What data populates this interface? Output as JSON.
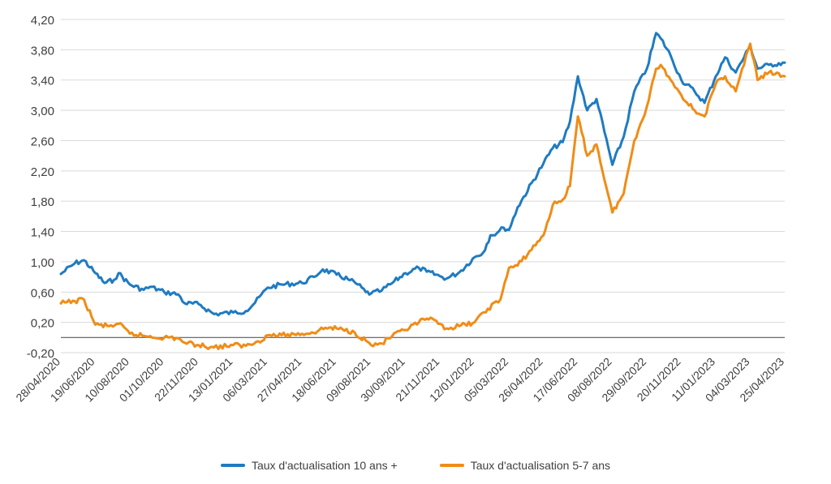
{
  "chart_data": {
    "type": "line",
    "title": "",
    "xlabel": "",
    "ylabel": "",
    "ylim": [
      -0.2,
      4.2
    ],
    "y_ticks": [
      "-0,20",
      "0,20",
      "0,60",
      "1,00",
      "1,40",
      "1,80",
      "2,20",
      "2,60",
      "3,00",
      "3,40",
      "3,80",
      "4,20"
    ],
    "x_tick_labels": [
      "28/04/2020",
      "19/06/2020",
      "10/08/2020",
      "01/10/2020",
      "22/11/2020",
      "13/01/2021",
      "06/03/2021",
      "27/04/2021",
      "18/06/2021",
      "09/08/2021",
      "30/09/2021",
      "21/11/2021",
      "12/01/2022",
      "05/03/2022",
      "26/04/2022",
      "17/06/2022",
      "08/08/2022",
      "29/09/2022",
      "20/11/2022",
      "11/01/2023",
      "04/03/2023",
      "25/04/2023"
    ],
    "grid": "horizontal",
    "legend_position": "bottom",
    "series": [
      {
        "name": "Taux d'actualisation 10 ans +",
        "color": "#1F7BC1",
        "points": [
          [
            "28/04/2020",
            0.84
          ],
          [
            "19/05/2020",
            0.98
          ],
          [
            "02/06/2020",
            1.02
          ],
          [
            "19/06/2020",
            0.85
          ],
          [
            "03/07/2020",
            0.72
          ],
          [
            "17/07/2020",
            0.76
          ],
          [
            "24/07/2020",
            0.85
          ],
          [
            "10/08/2020",
            0.7
          ],
          [
            "31/08/2020",
            0.63
          ],
          [
            "10/09/2020",
            0.67
          ],
          [
            "01/10/2020",
            0.6
          ],
          [
            "22/10/2020",
            0.57
          ],
          [
            "01/11/2020",
            0.45
          ],
          [
            "22/11/2020",
            0.44
          ],
          [
            "15/12/2020",
            0.31
          ],
          [
            "13/01/2021",
            0.33
          ],
          [
            "01/02/2021",
            0.35
          ],
          [
            "15/02/2021",
            0.46
          ],
          [
            "06/03/2021",
            0.66
          ],
          [
            "27/03/2021",
            0.7
          ],
          [
            "27/04/2021",
            0.72
          ],
          [
            "15/05/2021",
            0.8
          ],
          [
            "28/05/2021",
            0.9
          ],
          [
            "18/06/2021",
            0.83
          ],
          [
            "05/07/2021",
            0.77
          ],
          [
            "20/07/2021",
            0.7
          ],
          [
            "01/08/2021",
            0.6
          ],
          [
            "09/08/2021",
            0.58
          ],
          [
            "25/08/2021",
            0.62
          ],
          [
            "10/09/2021",
            0.72
          ],
          [
            "30/09/2021",
            0.85
          ],
          [
            "20/10/2021",
            0.92
          ],
          [
            "01/11/2021",
            0.87
          ],
          [
            "21/11/2021",
            0.81
          ],
          [
            "01/12/2021",
            0.78
          ],
          [
            "20/12/2021",
            0.86
          ],
          [
            "12/01/2022",
            1.06
          ],
          [
            "25/01/2022",
            1.12
          ],
          [
            "05/02/2022",
            1.35
          ],
          [
            "15/02/2022",
            1.38
          ],
          [
            "25/02/2022",
            1.45
          ],
          [
            "05/03/2022",
            1.42
          ],
          [
            "18/03/2022",
            1.72
          ],
          [
            "26/04/2022",
            2.3
          ],
          [
            "10/05/2022",
            2.5
          ],
          [
            "25/05/2022",
            2.58
          ],
          [
            "05/06/2022",
            2.85
          ],
          [
            "17/06/2022",
            3.45
          ],
          [
            "01/07/2022",
            3.0
          ],
          [
            "15/07/2022",
            3.15
          ],
          [
            "08/08/2022",
            2.28
          ],
          [
            "25/08/2022",
            2.65
          ],
          [
            "10/09/2022",
            3.25
          ],
          [
            "29/09/2022",
            3.55
          ],
          [
            "13/10/2022",
            4.02
          ],
          [
            "20/10/2022",
            3.95
          ],
          [
            "04/11/2022",
            3.72
          ],
          [
            "20/11/2022",
            3.4
          ],
          [
            "10/12/2022",
            3.25
          ],
          [
            "25/12/2022",
            3.1
          ],
          [
            "11/01/2023",
            3.45
          ],
          [
            "25/01/2023",
            3.7
          ],
          [
            "10/02/2023",
            3.5
          ],
          [
            "04/03/2023",
            3.85
          ],
          [
            "15/03/2023",
            3.55
          ],
          [
            "01/04/2023",
            3.6
          ],
          [
            "25/04/2023",
            3.63
          ]
        ]
      },
      {
        "name": "Taux d'actualisation 5-7 ans",
        "color": "#F08C16",
        "points": [
          [
            "28/04/2020",
            0.45
          ],
          [
            "19/05/2020",
            0.48
          ],
          [
            "02/06/2020",
            0.5
          ],
          [
            "19/06/2020",
            0.17
          ],
          [
            "10/07/2020",
            0.15
          ],
          [
            "24/07/2020",
            0.18
          ],
          [
            "10/08/2020",
            0.05
          ],
          [
            "01/09/2020",
            0.02
          ],
          [
            "01/10/2020",
            0.0
          ],
          [
            "22/10/2020",
            -0.01
          ],
          [
            "01/11/2020",
            -0.07
          ],
          [
            "22/11/2020",
            -0.1
          ],
          [
            "15/12/2020",
            -0.13
          ],
          [
            "13/01/2021",
            -0.1
          ],
          [
            "01/02/2021",
            -0.11
          ],
          [
            "20/02/2021",
            -0.05
          ],
          [
            "06/03/2021",
            0.03
          ],
          [
            "27/03/2021",
            0.03
          ],
          [
            "27/04/2021",
            0.05
          ],
          [
            "20/05/2021",
            0.08
          ],
          [
            "01/06/2021",
            0.13
          ],
          [
            "18/06/2021",
            0.12
          ],
          [
            "15/07/2021",
            0.07
          ],
          [
            "01/08/2021",
            -0.04
          ],
          [
            "09/08/2021",
            -0.1
          ],
          [
            "25/08/2021",
            -0.08
          ],
          [
            "10/09/2021",
            0.02
          ],
          [
            "30/09/2021",
            0.1
          ],
          [
            "20/10/2021",
            0.2
          ],
          [
            "01/11/2021",
            0.25
          ],
          [
            "21/11/2021",
            0.18
          ],
          [
            "01/12/2021",
            0.12
          ],
          [
            "20/12/2021",
            0.15
          ],
          [
            "12/01/2022",
            0.2
          ],
          [
            "01/02/2022",
            0.38
          ],
          [
            "20/02/2022",
            0.5
          ],
          [
            "05/03/2022",
            0.92
          ],
          [
            "18/03/2022",
            0.95
          ],
          [
            "26/04/2022",
            1.35
          ],
          [
            "10/05/2022",
            1.75
          ],
          [
            "25/05/2022",
            1.82
          ],
          [
            "05/06/2022",
            2.0
          ],
          [
            "17/06/2022",
            2.92
          ],
          [
            "01/07/2022",
            2.4
          ],
          [
            "15/07/2022",
            2.55
          ],
          [
            "08/08/2022",
            1.65
          ],
          [
            "25/08/2022",
            1.9
          ],
          [
            "10/09/2022",
            2.6
          ],
          [
            "29/09/2022",
            3.05
          ],
          [
            "13/10/2022",
            3.55
          ],
          [
            "20/10/2022",
            3.6
          ],
          [
            "04/11/2022",
            3.4
          ],
          [
            "20/11/2022",
            3.2
          ],
          [
            "10/12/2022",
            3.0
          ],
          [
            "25/12/2022",
            2.92
          ],
          [
            "11/01/2023",
            3.35
          ],
          [
            "25/01/2023",
            3.45
          ],
          [
            "10/02/2023",
            3.25
          ],
          [
            "04/03/2023",
            3.88
          ],
          [
            "15/03/2023",
            3.4
          ],
          [
            "01/04/2023",
            3.5
          ],
          [
            "25/04/2023",
            3.45
          ]
        ]
      }
    ]
  }
}
